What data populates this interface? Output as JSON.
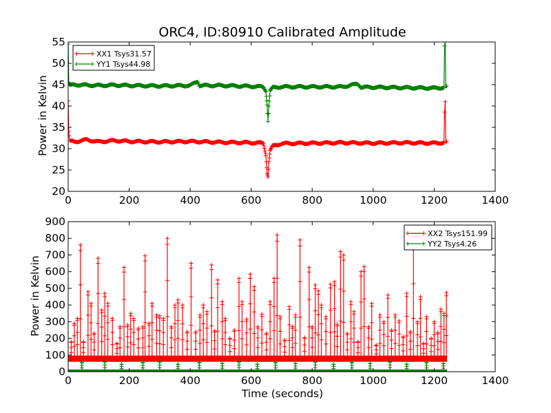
{
  "chart_data": [
    {
      "type": "line",
      "title": "ORC4, ID:80910 Calibrated Amplitude",
      "xlabel": "",
      "ylabel": "Power in Kelvin",
      "xlim": [
        0,
        1400
      ],
      "ylim": [
        20,
        55
      ],
      "xticks": [
        "0",
        "200",
        "400",
        "600",
        "800",
        "1000",
        "1200",
        "1400"
      ],
      "yticks": [
        "20",
        "25",
        "30",
        "35",
        "40",
        "45",
        "50",
        "55"
      ],
      "legend": "top-left",
      "grid": false,
      "series": [
        {
          "name": "XX1 Tsys31.57",
          "color": "#ff0000",
          "points": [
            [
              0,
              41.2
            ],
            [
              2,
              34
            ],
            [
              5,
              31.8
            ],
            [
              20,
              31.6
            ],
            [
              60,
              32.1
            ],
            [
              100,
              31.6
            ],
            [
              150,
              31.9
            ],
            [
              200,
              31.7
            ],
            [
              300,
              31.6
            ],
            [
              400,
              31.7
            ],
            [
              500,
              31.5
            ],
            [
              600,
              31.4
            ],
            [
              640,
              31.3
            ],
            [
              648,
              28.5
            ],
            [
              652,
              24.3
            ],
            [
              655,
              23.5
            ],
            [
              658,
              27
            ],
            [
              662,
              29.5
            ],
            [
              670,
              30.6
            ],
            [
              700,
              31.2
            ],
            [
              800,
              31.3
            ],
            [
              900,
              31.4
            ],
            [
              1000,
              31.3
            ],
            [
              1100,
              31.4
            ],
            [
              1200,
              31.3
            ],
            [
              1232,
              31.4
            ],
            [
              1234,
              38.5
            ],
            [
              1236,
              40.9
            ],
            [
              1238,
              31.5
            ],
            [
              1242,
              31.5
            ]
          ]
        },
        {
          "name": "YY1 Tsys44.98",
          "color": "#008000",
          "points": [
            [
              0,
              54.5
            ],
            [
              2,
              45.5
            ],
            [
              5,
              44.8
            ],
            [
              20,
              45
            ],
            [
              60,
              44.9
            ],
            [
              100,
              44.8
            ],
            [
              150,
              44.9
            ],
            [
              200,
              44.8
            ],
            [
              300,
              44.7
            ],
            [
              400,
              44.8
            ],
            [
              425,
              45.8
            ],
            [
              430,
              44.8
            ],
            [
              500,
              44.8
            ],
            [
              600,
              44.6
            ],
            [
              640,
              44.5
            ],
            [
              648,
              43.5
            ],
            [
              652,
              40.4
            ],
            [
              655,
              36.5
            ],
            [
              658,
              40
            ],
            [
              662,
              43.5
            ],
            [
              670,
              44.3
            ],
            [
              700,
              44.5
            ],
            [
              800,
              44.5
            ],
            [
              900,
              44.5
            ],
            [
              950,
              45.2
            ],
            [
              960,
              44.4
            ],
            [
              1000,
              44.4
            ],
            [
              1100,
              44.3
            ],
            [
              1200,
              44.2
            ],
            [
              1232,
              44.3
            ],
            [
              1234,
              54
            ],
            [
              1236,
              55
            ],
            [
              1238,
              44.5
            ],
            [
              1242,
              44.5
            ]
          ]
        }
      ]
    },
    {
      "type": "line",
      "title": "",
      "xlabel": "Time (seconds)",
      "ylabel": "Power in Kelvin",
      "xlim": [
        0,
        1400
      ],
      "ylim": [
        0,
        900
      ],
      "xticks": [
        "0",
        "200",
        "400",
        "600",
        "800",
        "1000",
        "1200",
        "1400"
      ],
      "yticks": [
        "0",
        "100",
        "200",
        "300",
        "400",
        "500",
        "600",
        "700",
        "800",
        "900"
      ],
      "legend": "top-right",
      "grid": false,
      "series": [
        {
          "name": "XX2 Tsys151.99",
          "color": "#ff0000",
          "baseline": 78,
          "spikes": [
            [
              10,
              180
            ],
            [
              20,
              290
            ],
            [
              30,
              320
            ],
            [
              40,
              760
            ],
            [
              50,
              180
            ],
            [
              65,
              480
            ],
            [
              75,
              410
            ],
            [
              85,
              230
            ],
            [
              98,
              680
            ],
            [
              110,
              370
            ],
            [
              120,
              470
            ],
            [
              130,
              410
            ],
            [
              145,
              320
            ],
            [
              160,
              170
            ],
            [
              170,
              270
            ],
            [
              183,
              625
            ],
            [
              195,
              280
            ],
            [
              205,
              350
            ],
            [
              215,
              320
            ],
            [
              230,
              260
            ],
            [
              245,
              270
            ],
            [
              252,
              695
            ],
            [
              265,
              290
            ],
            [
              275,
              410
            ],
            [
              290,
              340
            ],
            [
              300,
              335
            ],
            [
              312,
              320
            ],
            [
              325,
              800
            ],
            [
              338,
              270
            ],
            [
              350,
              400
            ],
            [
              360,
              430
            ],
            [
              375,
              400
            ],
            [
              390,
              240
            ],
            [
              403,
              650
            ],
            [
              418,
              240
            ],
            [
              432,
              340
            ],
            [
              443,
              400
            ],
            [
              455,
              360
            ],
            [
              470,
              640
            ],
            [
              480,
              245
            ],
            [
              490,
              550
            ],
            [
              505,
              420
            ],
            [
              515,
              320
            ],
            [
              530,
              200
            ],
            [
              545,
              250
            ],
            [
              560,
              560
            ],
            [
              570,
              420
            ],
            [
              585,
              315
            ],
            [
              597,
              585
            ],
            [
              610,
              510
            ],
            [
              622,
              270
            ],
            [
              635,
              345
            ],
            [
              650,
              230
            ],
            [
              662,
              420
            ],
            [
              675,
              560
            ],
            [
              685,
              820
            ],
            [
              695,
              330
            ],
            [
              710,
              190
            ],
            [
              725,
              390
            ],
            [
              735,
              270
            ],
            [
              745,
              340
            ],
            [
              760,
              790
            ],
            [
              775,
              205
            ],
            [
              790,
              625
            ],
            [
              800,
              270
            ],
            [
              810,
              520
            ],
            [
              820,
              485
            ],
            [
              830,
              400
            ],
            [
              845,
              330
            ],
            [
              860,
              525
            ],
            [
              873,
              540
            ],
            [
              882,
              285
            ],
            [
              893,
              720
            ],
            [
              903,
              700
            ],
            [
              915,
              230
            ],
            [
              927,
              420
            ],
            [
              937,
              360
            ],
            [
              950,
              180
            ],
            [
              960,
              600
            ],
            [
              970,
              630
            ],
            [
              985,
              270
            ],
            [
              995,
              410
            ],
            [
              1010,
              160
            ],
            [
              1022,
              340
            ],
            [
              1035,
              300
            ],
            [
              1048,
              460
            ],
            [
              1060,
              250
            ],
            [
              1072,
              340
            ],
            [
              1085,
              305
            ],
            [
              1098,
              210
            ],
            [
              1110,
              470
            ],
            [
              1122,
              240
            ],
            [
              1132,
              770
            ],
            [
              1145,
              300
            ],
            [
              1155,
              450
            ],
            [
              1165,
              170
            ],
            [
              1175,
              330
            ],
            [
              1190,
              200
            ],
            [
              1200,
              300
            ],
            [
              1212,
              235
            ],
            [
              1222,
              375
            ],
            [
              1232,
              350
            ],
            [
              1240,
              475
            ]
          ]
        },
        {
          "name": "YY2 Tsys4.26",
          "color": "#008000",
          "baseline": 5,
          "spikes": [
            [
              45,
              55
            ],
            [
              120,
              60
            ],
            [
              175,
              45
            ],
            [
              245,
              55
            ],
            [
              300,
              60
            ],
            [
              360,
              45
            ],
            [
              430,
              55
            ],
            [
              505,
              50
            ],
            [
              560,
              60
            ],
            [
              620,
              45
            ],
            [
              680,
              55
            ],
            [
              745,
              50
            ],
            [
              810,
              60
            ],
            [
              870,
              45
            ],
            [
              930,
              55
            ],
            [
              990,
              50
            ],
            [
              1055,
              60
            ],
            [
              1110,
              45
            ],
            [
              1175,
              55
            ],
            [
              1230,
              50
            ]
          ]
        }
      ]
    }
  ]
}
